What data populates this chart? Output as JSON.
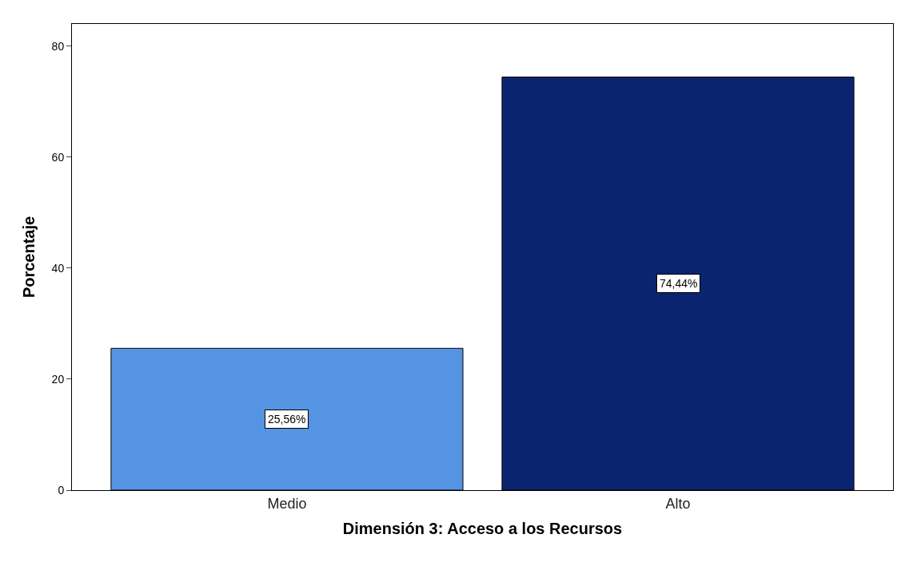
{
  "chart_data": {
    "type": "bar",
    "xlabel": "Dimensión 3: Acceso a los Recursos",
    "ylabel": "Porcentaje",
    "categories": [
      "Medio",
      "Alto"
    ],
    "values": [
      25.56,
      74.44
    ],
    "colors": [
      "#5494e3",
      "#0b2470"
    ],
    "value_labels": [
      "25,56%",
      "74,44%"
    ],
    "ylim": [
      0,
      84
    ],
    "yticks": [
      0,
      20,
      40,
      60,
      80
    ],
    "legend": false
  }
}
